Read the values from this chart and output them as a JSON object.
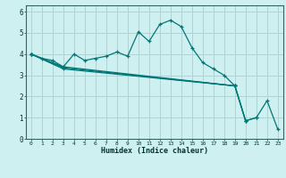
{
  "xlabel": "Humidex (Indice chaleur)",
  "background_color": "#cff0f0",
  "grid_color": "#b0d4d4",
  "line_color": "#007777",
  "xlim": [
    -0.5,
    23.5
  ],
  "ylim": [
    0,
    6.3
  ],
  "xticks": [
    0,
    1,
    2,
    3,
    4,
    5,
    6,
    7,
    8,
    9,
    10,
    11,
    12,
    13,
    14,
    15,
    16,
    17,
    18,
    19,
    20,
    21,
    22,
    23
  ],
  "yticks": [
    0,
    1,
    2,
    3,
    4,
    5,
    6
  ],
  "series": [
    {
      "x": [
        0,
        1,
        2,
        3,
        4,
        5,
        6,
        7,
        8,
        9,
        10,
        11,
        12,
        13,
        14,
        15,
        16,
        17,
        18,
        19
      ],
      "y": [
        4.0,
        3.8,
        3.7,
        3.4,
        4.0,
        3.7,
        3.8,
        3.9,
        4.1,
        3.9,
        5.05,
        4.6,
        5.4,
        5.6,
        5.3,
        4.3,
        3.6,
        3.3,
        3.0,
        2.5
      ]
    },
    {
      "x": [
        0,
        3,
        19,
        20,
        21,
        22,
        23
      ],
      "y": [
        4.0,
        3.4,
        2.5,
        0.85,
        1.0,
        1.8,
        0.45
      ]
    },
    {
      "x": [
        0,
        3,
        19,
        20,
        21
      ],
      "y": [
        4.0,
        3.35,
        2.5,
        0.85,
        1.0
      ]
    },
    {
      "x": [
        0,
        3,
        19,
        20
      ],
      "y": [
        4.0,
        3.3,
        2.5,
        0.85
      ]
    }
  ]
}
